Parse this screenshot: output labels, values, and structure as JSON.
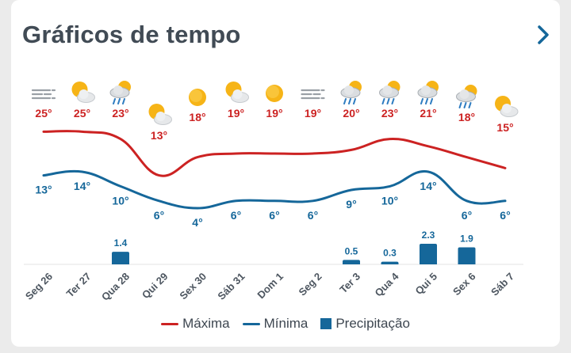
{
  "header": {
    "title": "Gráficos de tempo",
    "next_icon": "chevron-right-icon"
  },
  "chart_data": {
    "type": "line",
    "categories": [
      "Seg 26",
      "Ter 27",
      "Qua 28",
      "Qui 29",
      "Sex 30",
      "Sáb 31",
      "Dom 1",
      "Seg 2",
      "Ter 3",
      "Qua 4",
      "Qui 5",
      "Sex 6",
      "Sáb 7"
    ],
    "icons": [
      "fog-icon",
      "partly-cloudy-icon",
      "rain-partly-sunny-icon",
      "partly-cloudy-icon",
      "sun-icon",
      "partly-cloudy-icon",
      "sun-icon",
      "fog-icon",
      "rain-partly-sunny-icon",
      "rain-partly-sunny-icon",
      "rain-partly-sunny-icon",
      "rain-partly-sunny-icon",
      "partly-cloudy-icon"
    ],
    "series": [
      {
        "name": "Máxima",
        "type": "line",
        "color": "#cc2222",
        "values": [
          25,
          25,
          23,
          13,
          18,
          19,
          19,
          19,
          20,
          23,
          21,
          18,
          15
        ]
      },
      {
        "name": "Mínima",
        "type": "line",
        "color": "#15679a",
        "values": [
          13,
          14,
          10,
          6,
          4,
          6,
          6,
          6,
          9,
          10,
          14,
          6,
          6
        ]
      },
      {
        "name": "Precipitação",
        "type": "bar",
        "color": "#15679a",
        "values": [
          0,
          0,
          1.4,
          0,
          0,
          0,
          0,
          0,
          0.5,
          0.3,
          2.3,
          1.9,
          0
        ]
      }
    ],
    "temperature_labels": {
      "max": [
        "25°",
        "25°",
        "23°",
        "13°",
        "18°",
        "19°",
        "19°",
        "19°",
        "20°",
        "23°",
        "21°",
        "18°",
        "15°"
      ],
      "min": [
        "13°",
        "14°",
        "10°",
        "6°",
        "4°",
        "6°",
        "6°",
        "6°",
        "9°",
        "10°",
        "14°",
        "6°",
        "6°"
      ]
    },
    "precipitation_labels": [
      "",
      "",
      "1.4",
      "",
      "",
      "",
      "",
      "",
      "0.5",
      "0.3",
      "2.3",
      "1.9",
      ""
    ],
    "temp_range": [
      -16,
      50
    ],
    "precip_range": [
      0,
      2.3
    ],
    "legend_position": "bottom",
    "grid": false
  },
  "legend": [
    {
      "label": "Máxima",
      "color": "#cc2222",
      "kind": "line"
    },
    {
      "label": "Mínima",
      "color": "#15679a",
      "kind": "line"
    },
    {
      "label": "Precipitação",
      "color": "#15679a",
      "kind": "box"
    }
  ]
}
